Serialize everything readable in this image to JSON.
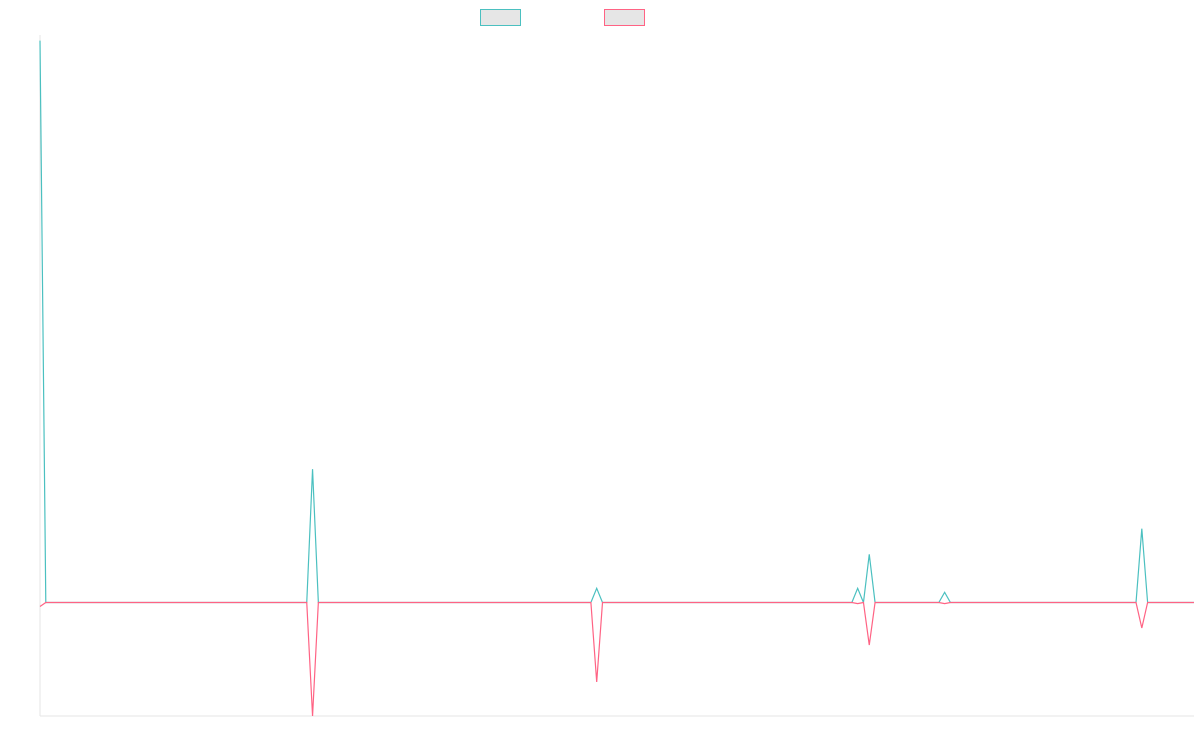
{
  "chart_data": {
    "type": "line",
    "title": "",
    "xlabel": "",
    "ylabel": "",
    "x_count": 200,
    "ylim": [
      -20,
      100
    ],
    "grid": false,
    "legend": "top-center",
    "colors": {
      "series_a": "#4bc0c0",
      "series_b": "#ff6384",
      "swatch_fill": "#e6e6e6",
      "axis": "#e5e5e5"
    },
    "series": [
      {
        "color": "#4bc0c0",
        "points": [
          [
            0,
            99
          ],
          [
            1,
            0
          ],
          [
            46,
            0
          ],
          [
            47,
            23.5
          ],
          [
            48,
            0
          ],
          [
            95,
            0
          ],
          [
            96,
            2.5
          ],
          [
            97,
            0
          ],
          [
            140,
            0
          ],
          [
            141,
            2.5
          ],
          [
            142,
            0
          ],
          [
            143,
            8.5
          ],
          [
            144,
            0
          ],
          [
            155,
            0
          ],
          [
            156,
            1.8
          ],
          [
            157,
            0
          ],
          [
            189,
            0
          ],
          [
            190,
            13
          ],
          [
            191,
            0
          ],
          [
            199,
            0
          ]
        ]
      },
      {
        "color": "#ff6384",
        "points": [
          [
            0,
            -0.7
          ],
          [
            1,
            0
          ],
          [
            46,
            0
          ],
          [
            47,
            -20
          ],
          [
            48,
            0
          ],
          [
            95,
            0
          ],
          [
            96,
            -14
          ],
          [
            97,
            0
          ],
          [
            140,
            0
          ],
          [
            141,
            -0.2
          ],
          [
            142,
            0
          ],
          [
            143,
            -7.5
          ],
          [
            144,
            0
          ],
          [
            155,
            0
          ],
          [
            156,
            -0.2
          ],
          [
            157,
            0
          ],
          [
            189,
            0
          ],
          [
            190,
            -4.5
          ],
          [
            191,
            0
          ],
          [
            199,
            0
          ]
        ]
      }
    ]
  }
}
